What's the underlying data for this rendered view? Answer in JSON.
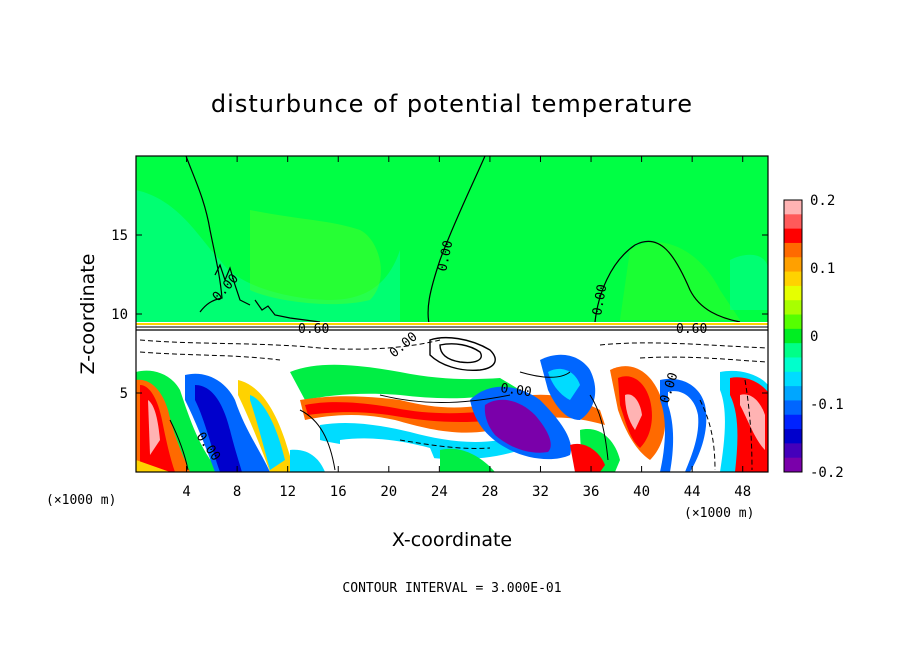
{
  "chart_data": {
    "type": "heatmap",
    "title": "disturbunce of potential temperature",
    "xlabel": "X-coordinate",
    "ylabel": "Z-coordinate",
    "x_unit_left": "(×1000 m)",
    "x_unit_right": "(×1000 m)",
    "xlim": [
      0,
      50
    ],
    "ylim": [
      0,
      20
    ],
    "x_ticks": [
      4,
      8,
      12,
      16,
      20,
      24,
      28,
      32,
      36,
      40,
      44,
      48
    ],
    "y_ticks": [
      5,
      10,
      15
    ],
    "colorbar": {
      "range": [
        -0.2,
        0.2
      ],
      "tick_values": [
        0.2,
        0.1,
        0,
        -0.1,
        -0.2
      ],
      "tick_labels": [
        "0.2",
        "0.1",
        "0",
        "-0.1",
        "-0.2"
      ],
      "colors": [
        "#ffb3b3",
        "#ff5a5a",
        "#ff0000",
        "#ff6a00",
        "#ffa000",
        "#ffd200",
        "#e6ff00",
        "#a8ff00",
        "#55ff00",
        "#00ee22",
        "#00ff88",
        "#00ffcc",
        "#00dcff",
        "#00a6ff",
        "#0066ff",
        "#0022ff",
        "#0000cc",
        "#4400bb",
        "#7a00aa"
      ]
    },
    "contour_labels": [
      "0.00",
      "0.00",
      "0.00",
      "0.00",
      "0.00",
      "0.00",
      "0.00",
      "0.60",
      "0.60"
    ],
    "contour_interval_text": "CONTOUR INTERVAL = 3.000E-01",
    "description_regions": {
      "upper_field_value": 0.0,
      "lower_region": "mixed positive and negative perturbations"
    }
  }
}
